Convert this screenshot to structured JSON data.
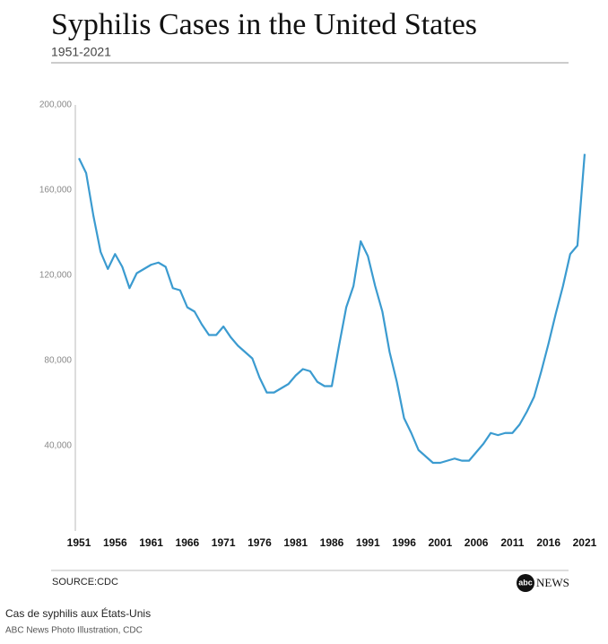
{
  "chart_data": {
    "type": "line",
    "title": "Syphilis Cases in the United States",
    "subtitle": "1951-2021",
    "source": "SOURCE:CDC",
    "logo": {
      "mark": "abc",
      "text": "NEWS"
    },
    "x": [
      1951,
      1952,
      1953,
      1954,
      1955,
      1956,
      1957,
      1958,
      1959,
      1960,
      1961,
      1962,
      1963,
      1964,
      1965,
      1966,
      1967,
      1968,
      1969,
      1970,
      1971,
      1972,
      1973,
      1974,
      1975,
      1976,
      1977,
      1978,
      1979,
      1980,
      1981,
      1982,
      1983,
      1984,
      1985,
      1986,
      1987,
      1988,
      1989,
      1990,
      1991,
      1992,
      1993,
      1994,
      1995,
      1996,
      1997,
      1998,
      1999,
      2000,
      2001,
      2002,
      2003,
      2004,
      2005,
      2006,
      2007,
      2008,
      2009,
      2010,
      2011,
      2012,
      2013,
      2014,
      2015,
      2016,
      2017,
      2018,
      2019,
      2020,
      2021
    ],
    "series": [
      {
        "name": "Syphilis cases",
        "color": "#3b9bd0",
        "values": [
          175000,
          168000,
          148000,
          131000,
          123000,
          130000,
          124000,
          114000,
          121000,
          123000,
          125000,
          126000,
          124000,
          114000,
          113000,
          105000,
          103000,
          97000,
          92000,
          92000,
          96000,
          91000,
          87000,
          84000,
          81000,
          72000,
          65000,
          65000,
          67000,
          69000,
          73000,
          76000,
          75000,
          70000,
          68000,
          68000,
          87000,
          105000,
          115000,
          136000,
          129000,
          115000,
          103000,
          84000,
          70000,
          53000,
          46000,
          38000,
          35000,
          32000,
          32000,
          33000,
          34000,
          33000,
          33000,
          37000,
          41000,
          46000,
          45000,
          46000,
          46000,
          50000,
          56000,
          63000,
          75000,
          88000,
          102000,
          115000,
          130000,
          134000,
          177000
        ]
      }
    ],
    "xlim": [
      1950.5,
      2021.5
    ],
    "xticks": [
      1951,
      1956,
      1961,
      1966,
      1971,
      1976,
      1981,
      1986,
      1991,
      1996,
      2001,
      2006,
      2011,
      2016,
      2021
    ],
    "ylim": [
      0,
      200000
    ],
    "yticks": [
      {
        "value": 40000,
        "label": "40,000"
      },
      {
        "value": 80000,
        "label": "80,000"
      },
      {
        "value": 120000,
        "label": "120,000"
      },
      {
        "value": 160000,
        "label": "160,000"
      },
      {
        "value": 200000,
        "label": "200,000"
      }
    ],
    "grid": false
  },
  "caption": "Cas de syphilis aux États-Unis",
  "credit": "ABC News Photo Illustration, CDC"
}
